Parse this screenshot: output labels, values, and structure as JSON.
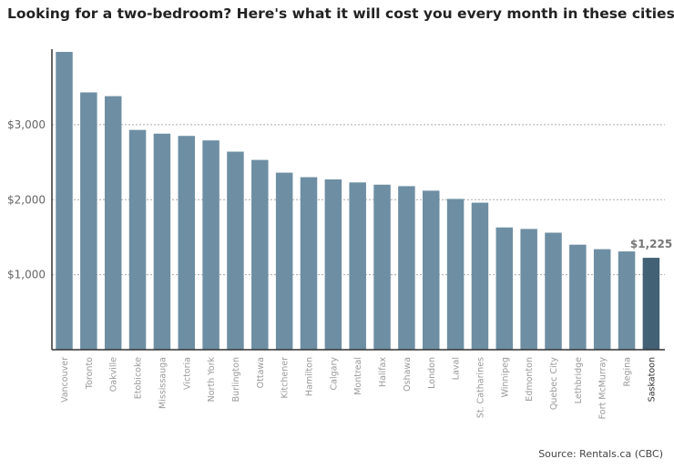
{
  "header": {
    "title": "Looking for a two-bedroom? Here's what it will cost you every month in these cities"
  },
  "footer": {
    "source": "Source: Rentals.ca (CBC)"
  },
  "colors": {
    "bar": "#6e8fa3",
    "highlight": "#436175",
    "axis": "#333333",
    "grid": "#aaaaaa"
  },
  "chart_data": {
    "type": "bar",
    "title": "Looking for a two-bedroom? Here's what it will cost you every month in these cities",
    "xlabel": "",
    "ylabel": "",
    "ylim": [
      0,
      4000
    ],
    "grid": true,
    "yticks": [
      {
        "value": 1000,
        "label": "$1,000"
      },
      {
        "value": 2000,
        "label": "$2,000"
      },
      {
        "value": 3000,
        "label": "$3,000"
      }
    ],
    "categories": [
      "Vancouver",
      "Toronto",
      "Oakville",
      "Etobicoke",
      "Mississauga",
      "Victoria",
      "North York",
      "Burlington",
      "Ottawa",
      "Kitchener",
      "Hamilton",
      "Calgary",
      "Montreal",
      "Halifax",
      "Oshawa",
      "London",
      "Laval",
      "St. Catharines",
      "Winnipeg",
      "Edmonton",
      "Quebec City",
      "Lethbridge",
      "Fort McMurray",
      "Regina",
      "Saskatoon"
    ],
    "values": [
      3970,
      3430,
      3380,
      2930,
      2880,
      2850,
      2790,
      2640,
      2530,
      2360,
      2300,
      2270,
      2230,
      2200,
      2180,
      2120,
      2010,
      1960,
      1630,
      1610,
      1560,
      1400,
      1340,
      1310,
      1225
    ],
    "highlight": {
      "category": "Saskatoon",
      "label": "$1,225"
    }
  }
}
